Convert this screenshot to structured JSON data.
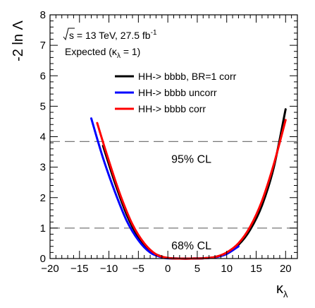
{
  "chart_data": {
    "type": "line",
    "ylabel": "-2 ln Λ",
    "xlabel_main": "κ",
    "xlabel_sub": "λ",
    "xlim": [
      -20,
      22
    ],
    "ylim": [
      0,
      8
    ],
    "x_ticks": [
      -20,
      -15,
      -10,
      -5,
      0,
      5,
      10,
      15,
      20
    ],
    "y_ticks": [
      0,
      1,
      2,
      3,
      4,
      5,
      6,
      7,
      8
    ],
    "annotations": {
      "energy_prefix": "s",
      "energy_rest": " = 13 TeV, 27.5 fb",
      "energy_sup": "-1",
      "expected_prefix": "Expected (κ",
      "expected_sub": "λ",
      "expected_suffix": " = 1)"
    },
    "reference_lines": [
      {
        "y": 3.84,
        "label": "95% CL"
      },
      {
        "y": 1.0,
        "label": "68% CL"
      }
    ],
    "series": [
      {
        "name": "HH-> bbbb, BR=1 corr",
        "color": "#000000",
        "x": [
          -11,
          -9,
          -7,
          -5,
          -3,
          -1,
          0,
          2,
          4,
          6,
          8,
          10,
          12,
          14,
          16,
          18,
          20
        ],
        "y": [
          3.7,
          2.5,
          1.45,
          0.7,
          0.25,
          0.06,
          0.02,
          0.0,
          0.0,
          0.01,
          0.05,
          0.18,
          0.45,
          0.95,
          1.75,
          3.0,
          4.9
        ]
      },
      {
        "name": "HH-> bbbb uncorr",
        "color": "#0000ff",
        "x": [
          -13,
          -11,
          -9,
          -7,
          -5,
          -3,
          -1,
          0,
          2,
          4,
          6,
          8,
          10,
          12
        ],
        "y": [
          4.6,
          3.3,
          2.2,
          1.25,
          0.6,
          0.2,
          0.04,
          0.01,
          0.0,
          0.0,
          0.01,
          0.04,
          0.15,
          0.4
        ]
      },
      {
        "name": "HH-> bbbb corr",
        "color": "#ff0000",
        "x": [
          -12,
          -10,
          -8,
          -6,
          -4,
          -2,
          0,
          2,
          4,
          6,
          8,
          10,
          12,
          14,
          16,
          18,
          20
        ],
        "y": [
          4.45,
          3.2,
          2.05,
          1.12,
          0.5,
          0.14,
          0.02,
          0.0,
          0.0,
          0.01,
          0.05,
          0.2,
          0.5,
          1.05,
          1.9,
          3.1,
          4.55
        ]
      }
    ]
  }
}
